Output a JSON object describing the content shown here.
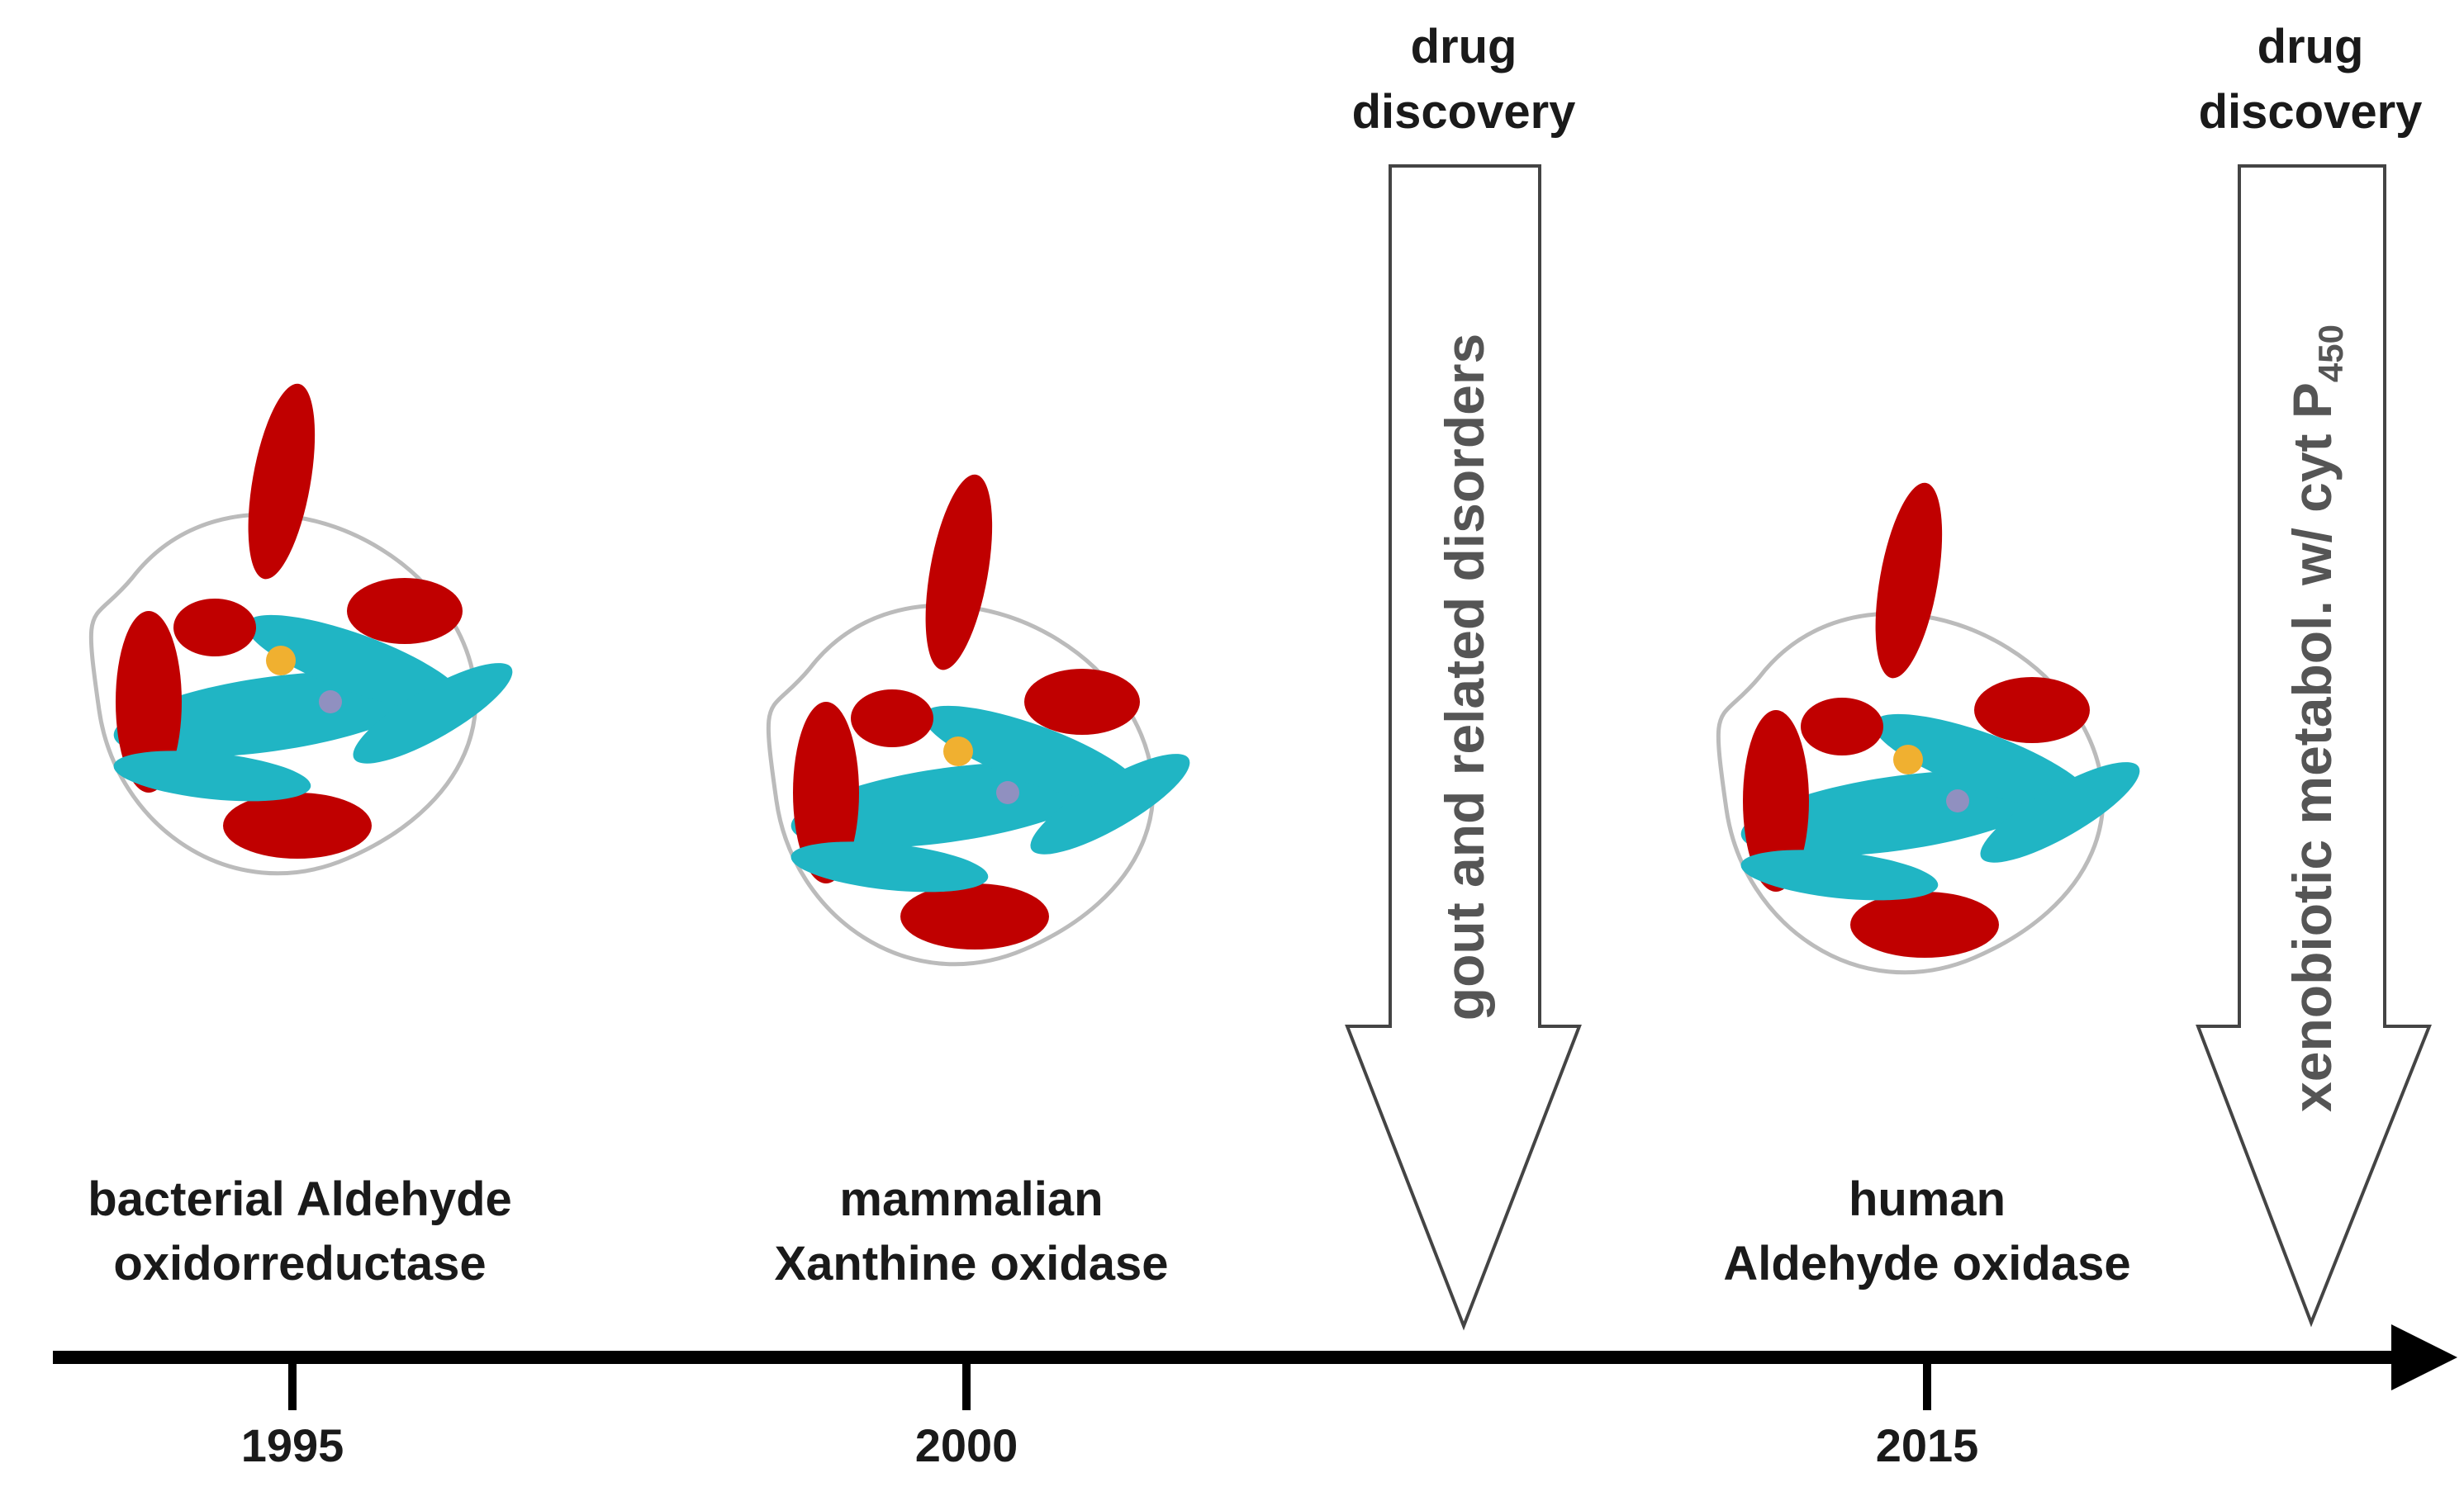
{
  "timeline": {
    "events": [
      {
        "year": "1995",
        "label": [
          "bacterial Aldehyde",
          "oxidorreductase"
        ]
      },
      {
        "year": "2000",
        "label": [
          "mammalian",
          "Xanthine oxidase"
        ]
      },
      {
        "year": "2015",
        "label": [
          "human",
          "Aldehyde oxidase"
        ]
      }
    ]
  },
  "arrows": [
    {
      "heading": [
        "drug",
        "discovery"
      ],
      "text": "gout and related disorders"
    },
    {
      "heading": [
        "drug",
        "discovery"
      ],
      "text": "xenobiotic metabol. w/ cyt P",
      "subscript": "450"
    }
  ]
}
